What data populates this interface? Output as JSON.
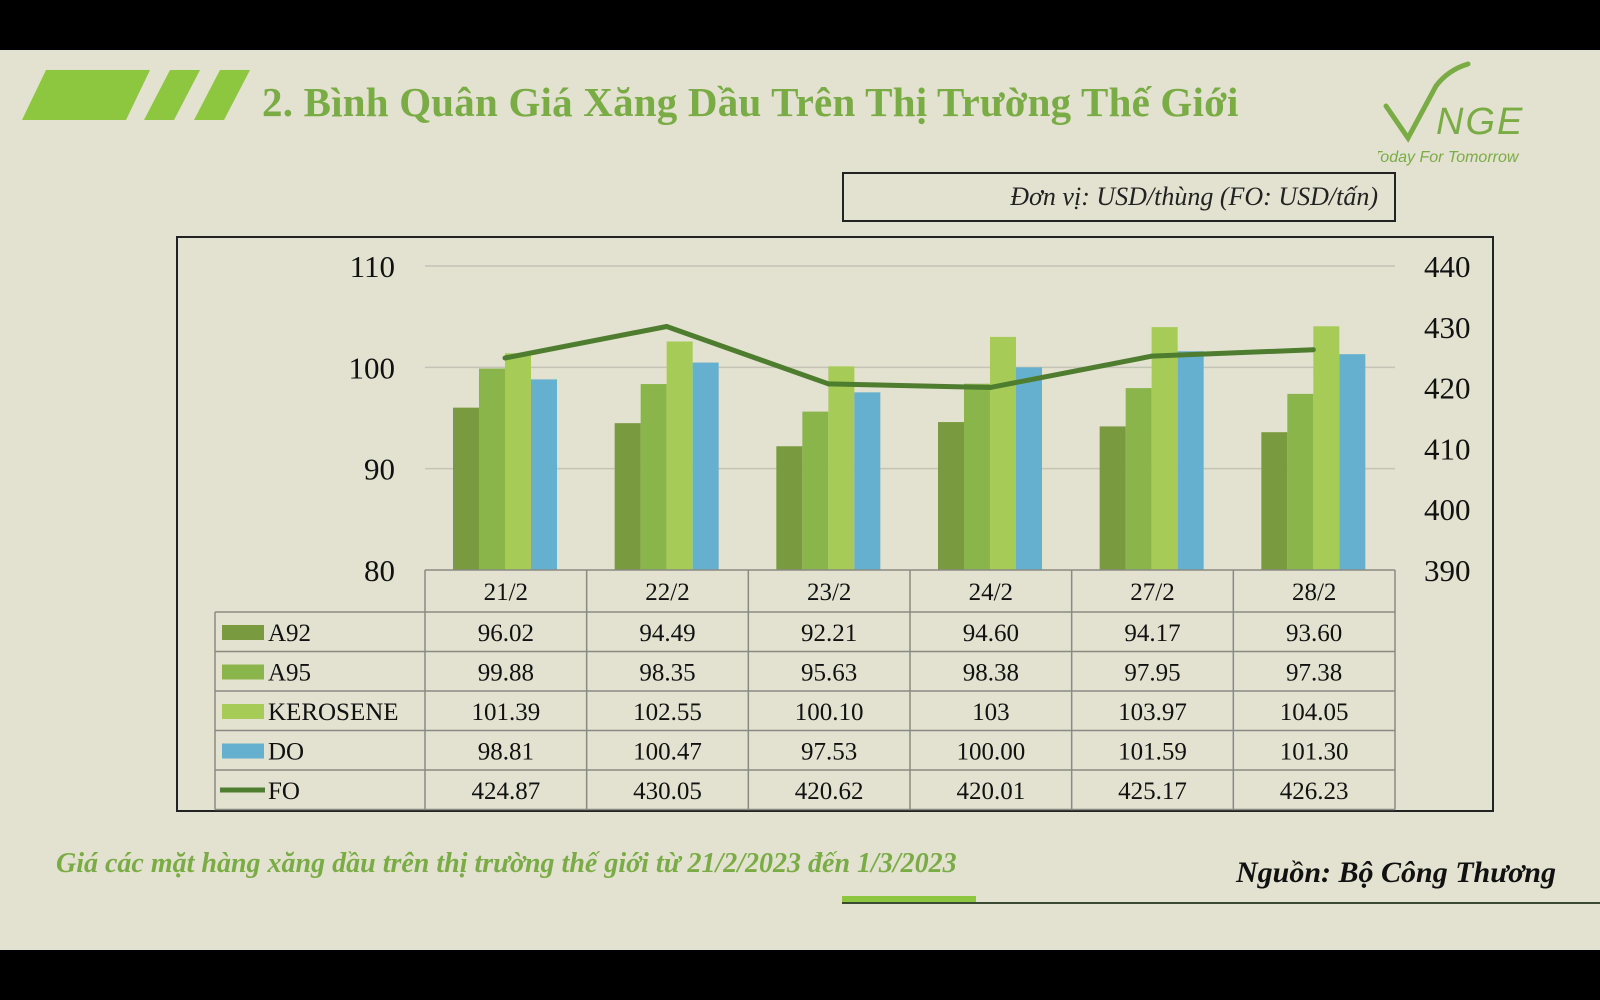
{
  "title": "2. Bình Quân Giá Xăng Dầu Trên Thị Trường Thế Giới",
  "logo": {
    "text": "VNGE",
    "tagline": "Today For Tomorrow"
  },
  "unit_label": "Đơn vị: USD/thùng (FO: USD/tấn)",
  "caption": "Giá các mặt hàng xăng dầu trên thị trường thế giới từ 21/2/2023 đến 1/3/2023",
  "source": "Nguồn: Bộ Công Thương",
  "colors": {
    "A92": "#7a9a3f",
    "A95": "#8ab54a",
    "KEROSENE": "#a6cc57",
    "DO": "#66b0cf",
    "FO": "#4e7d2f",
    "title": "#7aac45"
  },
  "chart_data": {
    "type": "bar",
    "categories": [
      "21/2",
      "22/2",
      "23/2",
      "24/2",
      "27/2",
      "28/2"
    ],
    "series": [
      {
        "name": "A92",
        "type": "bar",
        "axis": "left",
        "values": [
          96.02,
          94.49,
          92.21,
          94.6,
          94.17,
          93.6
        ],
        "labels": [
          "96.02",
          "94.49",
          "92.21",
          "94.60",
          "94.17",
          "93.60"
        ]
      },
      {
        "name": "A95",
        "type": "bar",
        "axis": "left",
        "values": [
          99.88,
          98.35,
          95.63,
          98.38,
          97.95,
          97.38
        ],
        "labels": [
          "99.88",
          "98.35",
          "95.63",
          "98.38",
          "97.95",
          "97.38"
        ]
      },
      {
        "name": "KEROSENE",
        "type": "bar",
        "axis": "left",
        "values": [
          101.39,
          102.55,
          100.1,
          103,
          103.97,
          104.05
        ],
        "labels": [
          "101.39",
          "102.55",
          "100.10",
          "103",
          "103.97",
          "104.05"
        ]
      },
      {
        "name": "DO",
        "type": "bar",
        "axis": "left",
        "values": [
          98.81,
          100.47,
          97.53,
          100.0,
          101.59,
          101.3
        ],
        "labels": [
          "98.81",
          "100.47",
          "97.53",
          "100.00",
          "101.59",
          "101.30"
        ]
      },
      {
        "name": "FO",
        "type": "line",
        "axis": "right",
        "values": [
          424.87,
          430.05,
          420.62,
          420.01,
          425.17,
          426.23
        ],
        "labels": [
          "424.87",
          "430.05",
          "420.62",
          "420.01",
          "425.17",
          "426.23"
        ]
      }
    ],
    "y_left": {
      "min": 80,
      "max": 110,
      "ticks": [
        "110",
        "100",
        "90",
        "80"
      ]
    },
    "y_right": {
      "min": 390,
      "max": 440,
      "ticks": [
        "440",
        "430",
        "420",
        "410",
        "400",
        "390"
      ]
    },
    "grid": true,
    "legend": "data-table"
  }
}
